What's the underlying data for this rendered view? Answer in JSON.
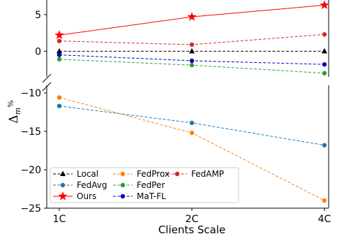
{
  "chart_data": {
    "type": "line",
    "xlabel": "Clients Scale",
    "ylabel": "Δ_m%",
    "categories": [
      "1C",
      "2C",
      "4C"
    ],
    "axis_break": true,
    "upper_panel": {
      "ylim": [
        -3.5,
        7
      ],
      "yticks": [
        0,
        5
      ]
    },
    "lower_panel": {
      "ylim": [
        -25,
        -9
      ],
      "yticks": [
        -10,
        -15,
        -20,
        -25
      ]
    },
    "series": [
      {
        "name": "Local",
        "color": "#000000",
        "dash": "dashed",
        "marker": "triangle",
        "values": [
          0,
          0,
          0
        ]
      },
      {
        "name": "FedAvg",
        "color": "#1f77b4",
        "dash": "dashed",
        "marker": "circle",
        "values": [
          -11.7,
          -13.9,
          -16.8
        ]
      },
      {
        "name": "Ours",
        "color": "#ff0000",
        "dash": "solid",
        "marker": "star",
        "values": [
          2.2,
          4.7,
          6.3
        ]
      },
      {
        "name": "FedProx",
        "color": "#ff7f0e",
        "dash": "dashed",
        "marker": "circle",
        "values": [
          -10.6,
          -15.2,
          -24.0
        ]
      },
      {
        "name": "FedPer",
        "color": "#2ca02c",
        "dash": "dashed",
        "marker": "circle",
        "values": [
          -1.1,
          -1.9,
          -3.0
        ]
      },
      {
        "name": "MaT-FL",
        "color": "#0000cc",
        "dash": "dashed",
        "marker": "circle",
        "values": [
          -0.5,
          -1.3,
          -1.8
        ]
      },
      {
        "name": "FedAMP",
        "color": "#d62728",
        "dash": "dashed",
        "marker": "circle",
        "values": [
          1.4,
          0.9,
          2.3
        ]
      }
    ],
    "legend": {
      "placement": "lower-left",
      "columns": 3
    }
  }
}
